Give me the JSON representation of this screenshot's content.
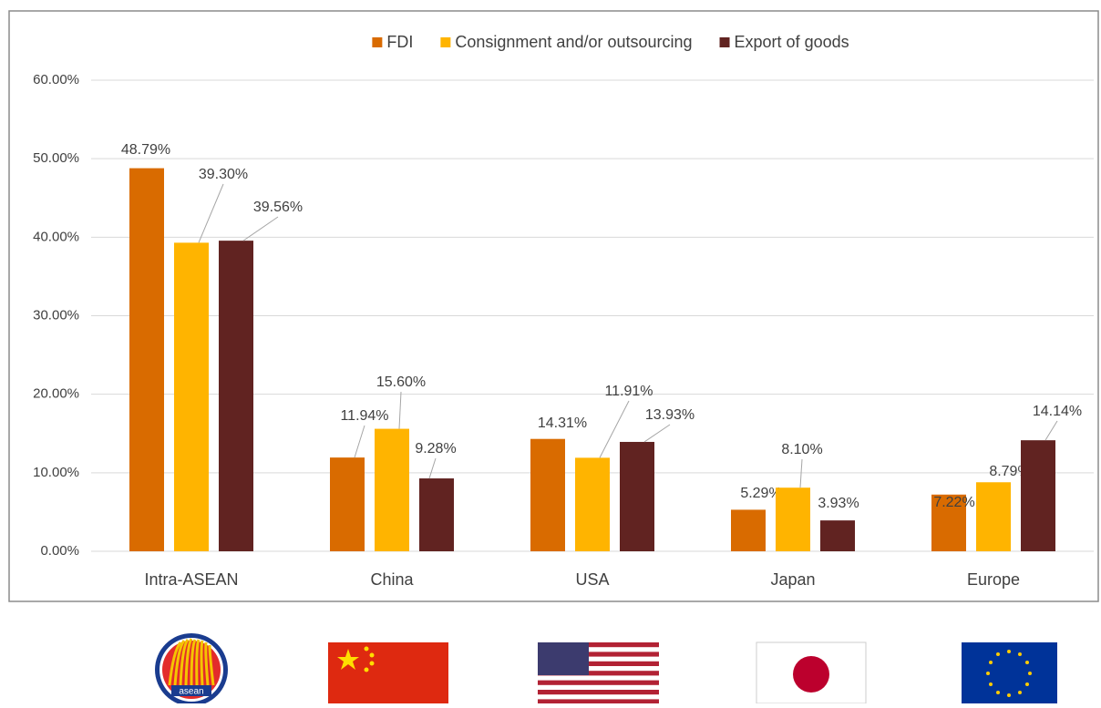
{
  "chart_data": {
    "type": "bar",
    "categories": [
      "Intra-ASEAN",
      "China",
      "USA",
      "Japan",
      "Europe"
    ],
    "series": [
      {
        "name": "FDI",
        "color": "#d96b00",
        "values": [
          48.79,
          11.94,
          14.31,
          5.29,
          7.22
        ],
        "value_labels": [
          "48.79%",
          "11.94%",
          "14.31%",
          "5.29%",
          "7.22%"
        ]
      },
      {
        "name": "Consignment and/or outsourcing",
        "color": "#ffb400",
        "values": [
          39.3,
          15.6,
          11.91,
          8.1,
          8.79
        ],
        "value_labels": [
          "39.30%",
          "15.60%",
          "11.91%",
          "8.10%",
          "8.79%"
        ]
      },
      {
        "name": "Export of goods",
        "color": "#612321",
        "values": [
          39.56,
          9.28,
          13.93,
          3.93,
          14.14
        ],
        "value_labels": [
          "39.56%",
          "9.28%",
          "13.93%",
          "3.93%",
          "14.14%"
        ]
      }
    ],
    "ylim": [
      0,
      60
    ],
    "yticks": [
      {
        "value": 0,
        "label": "0.00%"
      },
      {
        "value": 10,
        "label": "10.00%"
      },
      {
        "value": 20,
        "label": "20.00%"
      },
      {
        "value": 30,
        "label": "30.00%"
      },
      {
        "value": 40,
        "label": "40.00%"
      },
      {
        "value": 50,
        "label": "50.00%"
      },
      {
        "value": 60,
        "label": "60.00%"
      }
    ],
    "grid": true,
    "legend": "top"
  }
}
